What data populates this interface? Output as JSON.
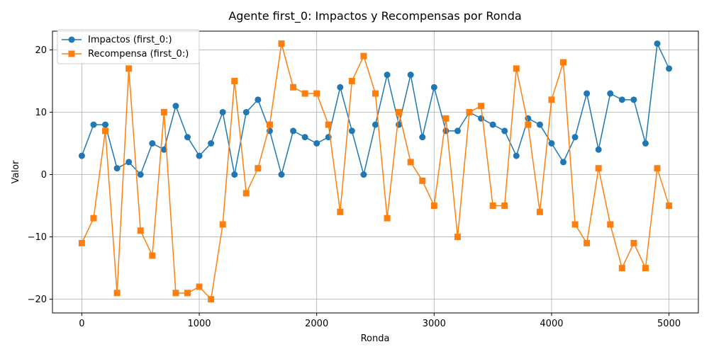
{
  "chart_data": {
    "type": "line",
    "title": "Agente first_0: Impactos y Recompensas por Ronda",
    "xlabel": "Ronda",
    "ylabel": "Valor",
    "xlim": [
      -250,
      5250
    ],
    "ylim": [
      -22.2,
      23
    ],
    "xticks": [
      0,
      1000,
      2000,
      3000,
      4000,
      5000
    ],
    "yticks": [
      -20,
      -10,
      0,
      10,
      20
    ],
    "ytick_labels": [
      "−20",
      "−10",
      "0",
      "10",
      "20"
    ],
    "grid": true,
    "legend_position": "top-left",
    "x": [
      0,
      100,
      200,
      300,
      400,
      500,
      600,
      700,
      800,
      900,
      1000,
      1100,
      1200,
      1300,
      1400,
      1500,
      1600,
      1700,
      1800,
      1900,
      2000,
      2100,
      2200,
      2300,
      2400,
      2500,
      2600,
      2700,
      2800,
      2900,
      3000,
      3100,
      3200,
      3300,
      3400,
      3500,
      3600,
      3700,
      3800,
      3900,
      4000,
      4100,
      4200,
      4300,
      4400,
      4500,
      4600,
      4700,
      4800,
      4900,
      5000
    ],
    "series": [
      {
        "name": "Impactos (first_0:)",
        "color": "#1f77b4",
        "marker": "circle",
        "values": [
          3,
          8,
          8,
          1,
          2,
          0,
          5,
          4,
          11,
          6,
          3,
          5,
          10,
          0,
          10,
          12,
          7,
          0,
          7,
          6,
          5,
          6,
          14,
          7,
          0,
          8,
          16,
          8,
          16,
          6,
          14,
          7,
          7,
          10,
          9,
          8,
          7,
          3,
          9,
          8,
          5,
          2,
          6,
          13,
          4,
          13,
          12,
          12,
          5,
          21,
          17
        ]
      },
      {
        "name": "Recompensa (first_0:)",
        "color": "#ff7f0e",
        "marker": "square",
        "values": [
          -11,
          -7,
          7,
          -19,
          17,
          -9,
          -13,
          10,
          -19,
          -19,
          -18,
          -20,
          -8,
          15,
          -3,
          1,
          8,
          21,
          14,
          13,
          13,
          8,
          -6,
          15,
          19,
          13,
          -7,
          10,
          2,
          -1,
          -5,
          9,
          -10,
          10,
          11,
          -5,
          -5,
          17,
          8,
          -6,
          12,
          18,
          -8,
          -11,
          1,
          -8,
          -15,
          -11,
          -15,
          1,
          -5
        ]
      }
    ]
  }
}
